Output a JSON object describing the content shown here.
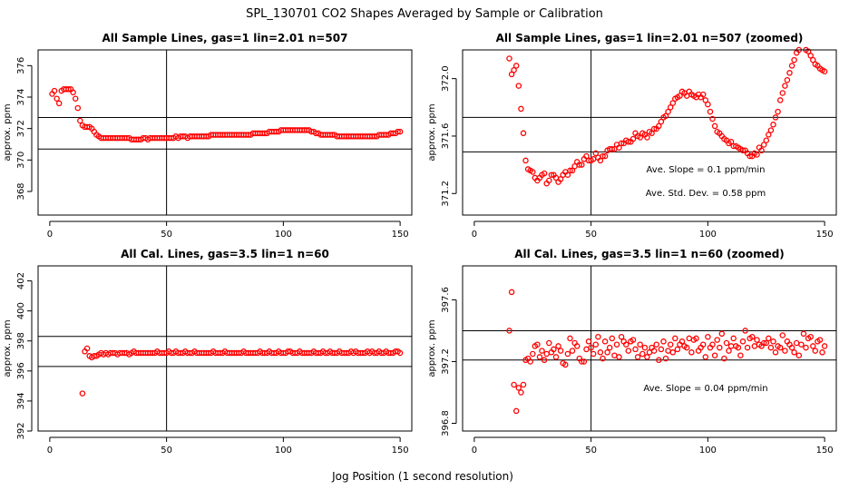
{
  "main_title": "SPL_130701  CO2 Shapes Averaged by Sample or Calibration",
  "x_axis_label": "Jog Position (1 second resolution)",
  "colors": {
    "points": "#ff0000",
    "lines": "#000000"
  },
  "chart_data": [
    {
      "type": "scatter",
      "title": "All Sample Lines, gas=1 lin=2.01 n=507",
      "ylabel": "approx. ppm",
      "xlim": [
        -5,
        155
      ],
      "ylim": [
        366.5,
        377
      ],
      "xticks": [
        0,
        50,
        100,
        150
      ],
      "xtick_labels": [
        "0",
        "50",
        "100",
        "150"
      ],
      "yticks": [
        368,
        370,
        372,
        374,
        376
      ],
      "ytick_labels": [
        "368",
        "370",
        "372",
        "374",
        "376"
      ],
      "vline": 50,
      "hlines": [
        370.7,
        372.7
      ],
      "annotations": [],
      "x": [
        1,
        2,
        3,
        4,
        5,
        6,
        7,
        8,
        9,
        10,
        11,
        12,
        13,
        14,
        15,
        16,
        17,
        18,
        19,
        20,
        21,
        22,
        23,
        24,
        25,
        26,
        27,
        28,
        29,
        30,
        31,
        32,
        33,
        34,
        35,
        36,
        37,
        38,
        39,
        40,
        41,
        42,
        43,
        44,
        45,
        46,
        47,
        48,
        49,
        50,
        51,
        52,
        53,
        54,
        55,
        56,
        57,
        58,
        59,
        60,
        61,
        62,
        63,
        64,
        65,
        66,
        67,
        68,
        69,
        70,
        71,
        72,
        73,
        74,
        75,
        76,
        77,
        78,
        79,
        80,
        81,
        82,
        83,
        84,
        85,
        86,
        87,
        88,
        89,
        90,
        91,
        92,
        93,
        94,
        95,
        96,
        97,
        98,
        99,
        100,
        101,
        102,
        103,
        104,
        105,
        106,
        107,
        108,
        109,
        110,
        111,
        112,
        113,
        114,
        115,
        116,
        117,
        118,
        119,
        120,
        121,
        122,
        123,
        124,
        125,
        126,
        127,
        128,
        129,
        130,
        131,
        132,
        133,
        134,
        135,
        136,
        137,
        138,
        139,
        140,
        141,
        142,
        143,
        144,
        145,
        146,
        147,
        148,
        149,
        150
      ],
      "y": [
        374.2,
        374.4,
        373.9,
        373.6,
        374.4,
        374.5,
        374.5,
        374.5,
        374.5,
        374.3,
        373.9,
        373.3,
        372.5,
        372.2,
        372.1,
        372.1,
        372.1,
        372.0,
        371.8,
        371.6,
        371.5,
        371.4,
        371.4,
        371.4,
        371.4,
        371.4,
        371.4,
        371.4,
        371.4,
        371.4,
        371.4,
        371.4,
        371.4,
        371.4,
        371.3,
        371.3,
        371.3,
        371.3,
        371.3,
        371.4,
        371.4,
        371.3,
        371.4,
        371.4,
        371.4,
        371.4,
        371.4,
        371.4,
        371.4,
        371.4,
        371.4,
        371.4,
        371.4,
        371.5,
        371.4,
        371.5,
        371.5,
        371.5,
        371.4,
        371.5,
        371.5,
        371.5,
        371.5,
        371.5,
        371.5,
        371.5,
        371.5,
        371.5,
        371.6,
        371.6,
        371.6,
        371.6,
        371.6,
        371.6,
        371.6,
        371.6,
        371.6,
        371.6,
        371.6,
        371.6,
        371.6,
        371.6,
        371.6,
        371.6,
        371.6,
        371.6,
        371.7,
        371.7,
        371.7,
        371.7,
        371.7,
        371.7,
        371.7,
        371.8,
        371.8,
        371.8,
        371.8,
        371.8,
        371.9,
        371.9,
        371.9,
        371.9,
        371.9,
        371.9,
        371.9,
        371.9,
        371.9,
        371.9,
        371.9,
        371.9,
        371.9,
        371.8,
        371.8,
        371.7,
        371.7,
        371.6,
        371.6,
        371.6,
        371.6,
        371.6,
        371.6,
        371.6,
        371.5,
        371.5,
        371.5,
        371.5,
        371.5,
        371.5,
        371.5,
        371.5,
        371.5,
        371.5,
        371.5,
        371.5,
        371.5,
        371.5,
        371.5,
        371.5,
        371.5,
        371.5,
        371.6,
        371.6,
        371.6,
        371.6,
        371.6,
        371.7,
        371.7,
        371.7,
        371.8,
        371.8
      ]
    },
    {
      "type": "scatter",
      "title": "All Sample Lines, gas=1 lin=2.01 n=507 (zoomed)",
      "ylabel": "approx. ppm",
      "xlim": [
        -5,
        155
      ],
      "ylim": [
        371.05,
        372.2
      ],
      "xticks": [
        0,
        50,
        100,
        150
      ],
      "xtick_labels": [
        "0",
        "50",
        "100",
        "150"
      ],
      "yticks": [
        371.2,
        371.6,
        372.0
      ],
      "ytick_labels": [
        "371.2",
        "371.6",
        "372.0"
      ],
      "vline": 50,
      "hlines": [
        371.49,
        371.73
      ],
      "annotations": [
        "Ave. Slope =  0.1  ppm/min",
        "Ave. Std. Dev. =  0.58  ppm"
      ],
      "x": [
        15,
        16,
        17,
        18,
        19,
        20,
        21,
        22,
        23,
        24,
        25,
        26,
        27,
        28,
        29,
        30,
        31,
        32,
        33,
        34,
        35,
        36,
        37,
        38,
        39,
        40,
        41,
        42,
        43,
        44,
        45,
        46,
        47,
        48,
        49,
        50,
        51,
        52,
        53,
        54,
        55,
        56,
        57,
        58,
        59,
        60,
        61,
        62,
        63,
        64,
        65,
        66,
        67,
        68,
        69,
        70,
        71,
        72,
        73,
        74,
        75,
        76,
        77,
        78,
        79,
        80,
        81,
        82,
        83,
        84,
        85,
        86,
        87,
        88,
        89,
        90,
        91,
        92,
        93,
        94,
        95,
        96,
        97,
        98,
        99,
        100,
        101,
        102,
        103,
        104,
        105,
        106,
        107,
        108,
        109,
        110,
        111,
        112,
        113,
        114,
        115,
        116,
        117,
        118,
        119,
        120,
        121,
        122,
        123,
        124,
        125,
        126,
        127,
        128,
        129,
        130,
        131,
        132,
        133,
        134,
        135,
        136,
        137,
        138,
        139,
        140,
        141,
        142,
        143,
        144,
        145,
        146,
        147,
        148,
        149,
        150
      ],
      "y": [
        372.14,
        372.03,
        372.06,
        372.09,
        371.95,
        371.79,
        371.62,
        371.43,
        371.37,
        371.36,
        371.35,
        371.31,
        371.29,
        371.31,
        371.33,
        371.34,
        371.27,
        371.29,
        371.33,
        371.33,
        371.31,
        371.28,
        371.3,
        371.33,
        371.35,
        371.33,
        371.36,
        371.36,
        371.39,
        371.42,
        371.4,
        371.4,
        371.44,
        371.46,
        371.43,
        371.43,
        371.44,
        371.48,
        371.45,
        371.43,
        371.46,
        371.46,
        371.5,
        371.51,
        371.51,
        371.51,
        371.54,
        371.52,
        371.55,
        371.55,
        371.57,
        371.56,
        371.56,
        371.58,
        371.62,
        371.6,
        371.59,
        371.62,
        371.61,
        371.59,
        371.63,
        371.62,
        371.65,
        371.65,
        371.67,
        371.7,
        371.73,
        371.74,
        371.77,
        371.8,
        371.83,
        371.86,
        371.87,
        371.88,
        371.91,
        371.9,
        371.88,
        371.91,
        371.89,
        371.88,
        371.87,
        371.89,
        371.87,
        371.89,
        371.85,
        371.82,
        371.77,
        371.72,
        371.67,
        371.63,
        371.62,
        371.6,
        371.58,
        371.57,
        371.55,
        371.56,
        371.53,
        371.53,
        371.52,
        371.51,
        371.5,
        371.5,
        371.48,
        371.46,
        371.46,
        371.48,
        371.47,
        371.52,
        371.5,
        371.54,
        371.57,
        371.61,
        371.64,
        371.68,
        371.73,
        371.77,
        371.85,
        371.9,
        371.95,
        371.99,
        372.04,
        372.09,
        372.13,
        372.18,
        372.2,
        372.21,
        372.22,
        372.2,
        372.19,
        372.16,
        372.13,
        372.1,
        372.09,
        372.07,
        372.06,
        372.05
      ]
    },
    {
      "type": "scatter",
      "title": "All Cal. Lines, gas=3.5 lin=1 n=60",
      "ylabel": "approx. ppm",
      "xlim": [
        -5,
        155
      ],
      "ylim": [
        392,
        403
      ],
      "xticks": [
        0,
        50,
        100,
        150
      ],
      "xtick_labels": [
        "0",
        "50",
        "100",
        "150"
      ],
      "yticks": [
        392,
        394,
        396,
        398,
        400,
        402
      ],
      "ytick_labels": [
        "392",
        "394",
        "396",
        "398",
        "400",
        "402"
      ],
      "vline": 50,
      "hlines": [
        396.3,
        398.3
      ],
      "annotations": [],
      "x": [
        14,
        15,
        16,
        17,
        18,
        19,
        20,
        21,
        22,
        23,
        24,
        25,
        26,
        27,
        28,
        29,
        30,
        31,
        32,
        33,
        34,
        35,
        36,
        37,
        38,
        39,
        40,
        41,
        42,
        43,
        44,
        45,
        46,
        47,
        48,
        49,
        50,
        51,
        52,
        53,
        54,
        55,
        56,
        57,
        58,
        59,
        60,
        61,
        62,
        63,
        64,
        65,
        66,
        67,
        68,
        69,
        70,
        71,
        72,
        73,
        74,
        75,
        76,
        77,
        78,
        79,
        80,
        81,
        82,
        83,
        84,
        85,
        86,
        87,
        88,
        89,
        90,
        91,
        92,
        93,
        94,
        95,
        96,
        97,
        98,
        99,
        100,
        101,
        102,
        103,
        104,
        105,
        106,
        107,
        108,
        109,
        110,
        111,
        112,
        113,
        114,
        115,
        116,
        117,
        118,
        119,
        120,
        121,
        122,
        123,
        124,
        125,
        126,
        127,
        128,
        129,
        130,
        131,
        132,
        133,
        134,
        135,
        136,
        137,
        138,
        139,
        140,
        141,
        142,
        143,
        144,
        145,
        146,
        147,
        148,
        149,
        150
      ],
      "y": [
        394.5,
        397.3,
        397.5,
        397.0,
        396.9,
        397.0,
        397.0,
        397.1,
        397.2,
        397.1,
        397.2,
        397.1,
        397.2,
        397.2,
        397.2,
        397.1,
        397.2,
        397.2,
        397.2,
        397.2,
        397.1,
        397.2,
        397.3,
        397.2,
        397.2,
        397.2,
        397.2,
        397.2,
        397.2,
        397.2,
        397.2,
        397.2,
        397.3,
        397.2,
        397.2,
        397.2,
        397.2,
        397.3,
        397.2,
        397.2,
        397.3,
        397.2,
        397.2,
        397.2,
        397.3,
        397.2,
        397.2,
        397.2,
        397.3,
        397.2,
        397.2,
        397.2,
        397.2,
        397.2,
        397.2,
        397.2,
        397.3,
        397.2,
        397.2,
        397.2,
        397.2,
        397.3,
        397.2,
        397.2,
        397.2,
        397.2,
        397.2,
        397.2,
        397.2,
        397.3,
        397.2,
        397.2,
        397.2,
        397.2,
        397.2,
        397.2,
        397.3,
        397.2,
        397.2,
        397.2,
        397.3,
        397.2,
        397.2,
        397.2,
        397.3,
        397.2,
        397.2,
        397.2,
        397.3,
        397.3,
        397.2,
        397.2,
        397.2,
        397.3,
        397.2,
        397.2,
        397.2,
        397.2,
        397.2,
        397.3,
        397.2,
        397.2,
        397.2,
        397.3,
        397.2,
        397.2,
        397.3,
        397.2,
        397.2,
        397.2,
        397.3,
        397.2,
        397.2,
        397.2,
        397.2,
        397.3,
        397.2,
        397.3,
        397.2,
        397.2,
        397.2,
        397.2,
        397.3,
        397.2,
        397.3,
        397.2,
        397.2,
        397.3,
        397.2,
        397.2,
        397.3,
        397.2,
        397.2,
        397.2,
        397.3,
        397.3,
        397.2
      ]
    },
    {
      "type": "scatter",
      "title": "All Cal. Lines, gas=3.5 lin=1 n=60 (zoomed)",
      "ylabel": "approx. ppm",
      "xlim": [
        -5,
        155
      ],
      "ylim": [
        396.75,
        397.82
      ],
      "xticks": [
        0,
        50,
        100,
        150
      ],
      "xtick_labels": [
        "0",
        "50",
        "100",
        "150"
      ],
      "yticks": [
        396.8,
        397.2,
        397.6
      ],
      "ytick_labels": [
        "396.8",
        "397.2",
        "397.6"
      ],
      "vline": 50,
      "hlines": [
        397.21,
        397.4
      ],
      "annotations": [
        "Ave. Slope =  0.04  ppm/min"
      ],
      "x": [
        15,
        16,
        17,
        18,
        19,
        20,
        21,
        22,
        23,
        24,
        25,
        26,
        27,
        28,
        29,
        30,
        31,
        32,
        33,
        34,
        35,
        36,
        37,
        38,
        39,
        40,
        41,
        42,
        43,
        44,
        45,
        46,
        47,
        48,
        49,
        50,
        51,
        52,
        53,
        54,
        55,
        56,
        57,
        58,
        59,
        60,
        61,
        62,
        63,
        64,
        65,
        66,
        67,
        68,
        69,
        70,
        71,
        72,
        73,
        74,
        75,
        76,
        77,
        78,
        79,
        80,
        81,
        82,
        83,
        84,
        85,
        86,
        87,
        88,
        89,
        90,
        91,
        92,
        93,
        94,
        95,
        96,
        97,
        98,
        99,
        100,
        101,
        102,
        103,
        104,
        105,
        106,
        107,
        108,
        109,
        110,
        111,
        112,
        113,
        114,
        115,
        116,
        117,
        118,
        119,
        120,
        121,
        122,
        123,
        124,
        125,
        126,
        127,
        128,
        129,
        130,
        131,
        132,
        133,
        134,
        135,
        136,
        137,
        138,
        139,
        140,
        141,
        142,
        143,
        144,
        145,
        146,
        147,
        148,
        149,
        150
      ],
      "y": [
        397.4,
        397.65,
        397.05,
        396.88,
        397.03,
        397.0,
        397.05,
        397.21,
        397.22,
        397.2,
        397.25,
        397.3,
        397.31,
        397.23,
        397.27,
        397.21,
        397.25,
        397.32,
        397.26,
        397.28,
        397.23,
        397.3,
        397.27,
        397.19,
        397.18,
        397.25,
        397.35,
        397.27,
        397.32,
        397.3,
        397.22,
        397.2,
        397.2,
        397.28,
        397.33,
        397.29,
        397.25,
        397.31,
        397.36,
        397.26,
        397.22,
        397.33,
        397.26,
        397.29,
        397.35,
        397.24,
        397.31,
        397.23,
        397.36,
        397.33,
        397.31,
        397.27,
        397.33,
        397.34,
        397.28,
        397.23,
        397.31,
        397.25,
        397.29,
        397.23,
        397.26,
        397.29,
        397.27,
        397.31,
        397.21,
        397.28,
        397.33,
        397.22,
        397.27,
        397.31,
        397.26,
        397.35,
        397.28,
        397.31,
        397.33,
        397.3,
        397.29,
        397.35,
        397.26,
        397.34,
        397.35,
        397.27,
        397.29,
        397.31,
        397.23,
        397.36,
        397.29,
        397.31,
        397.24,
        397.34,
        397.29,
        397.38,
        397.22,
        397.32,
        397.27,
        397.3,
        397.35,
        397.3,
        397.29,
        397.24,
        397.33,
        397.4,
        397.29,
        397.35,
        397.36,
        397.3,
        397.34,
        397.31,
        397.3,
        397.32,
        397.32,
        397.35,
        397.29,
        397.33,
        397.26,
        397.3,
        397.29,
        397.37,
        397.27,
        397.33,
        397.31,
        397.29,
        397.26,
        397.32,
        397.24,
        397.31,
        397.38,
        397.29,
        397.35,
        397.36,
        397.3,
        397.27,
        397.33,
        397.34,
        397.26,
        397.3
      ]
    }
  ]
}
